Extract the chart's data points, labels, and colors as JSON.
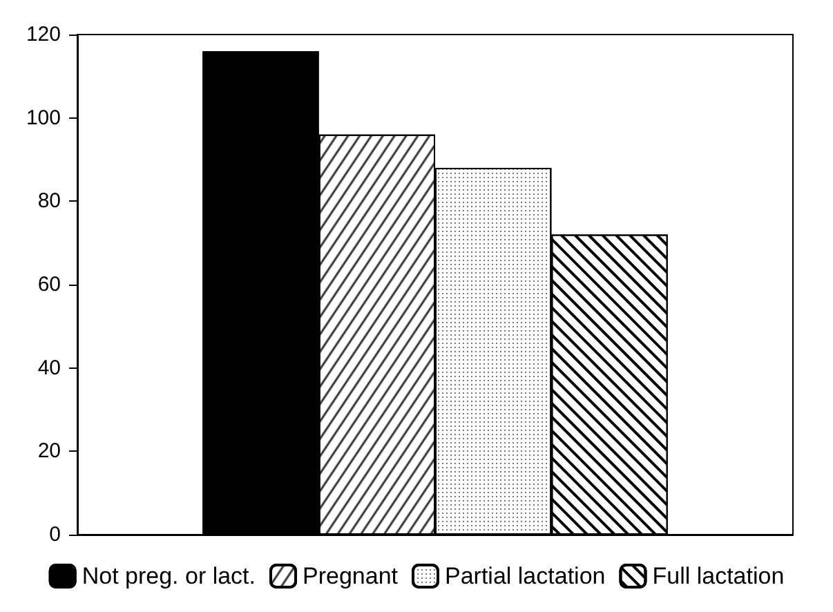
{
  "chart_data": {
    "type": "bar",
    "categories": [
      null
    ],
    "series": [
      {
        "name": "Not preg. or lact.",
        "color": "#000000",
        "values": [
          116
        ]
      },
      {
        "name": "Pregnant",
        "color": "#ffffff",
        "values": [
          96
        ]
      },
      {
        "name": "Partial lactation",
        "color": "#ffffff",
        "values": [
          88
        ]
      },
      {
        "name": "Full lactation",
        "color": "#ffffff",
        "values": [
          72
        ]
      }
    ],
    "ylim": [
      0,
      120
    ],
    "yticks": [
      0,
      20,
      40,
      60,
      80,
      100,
      120
    ],
    "grid": false,
    "legend": "bottom"
  }
}
